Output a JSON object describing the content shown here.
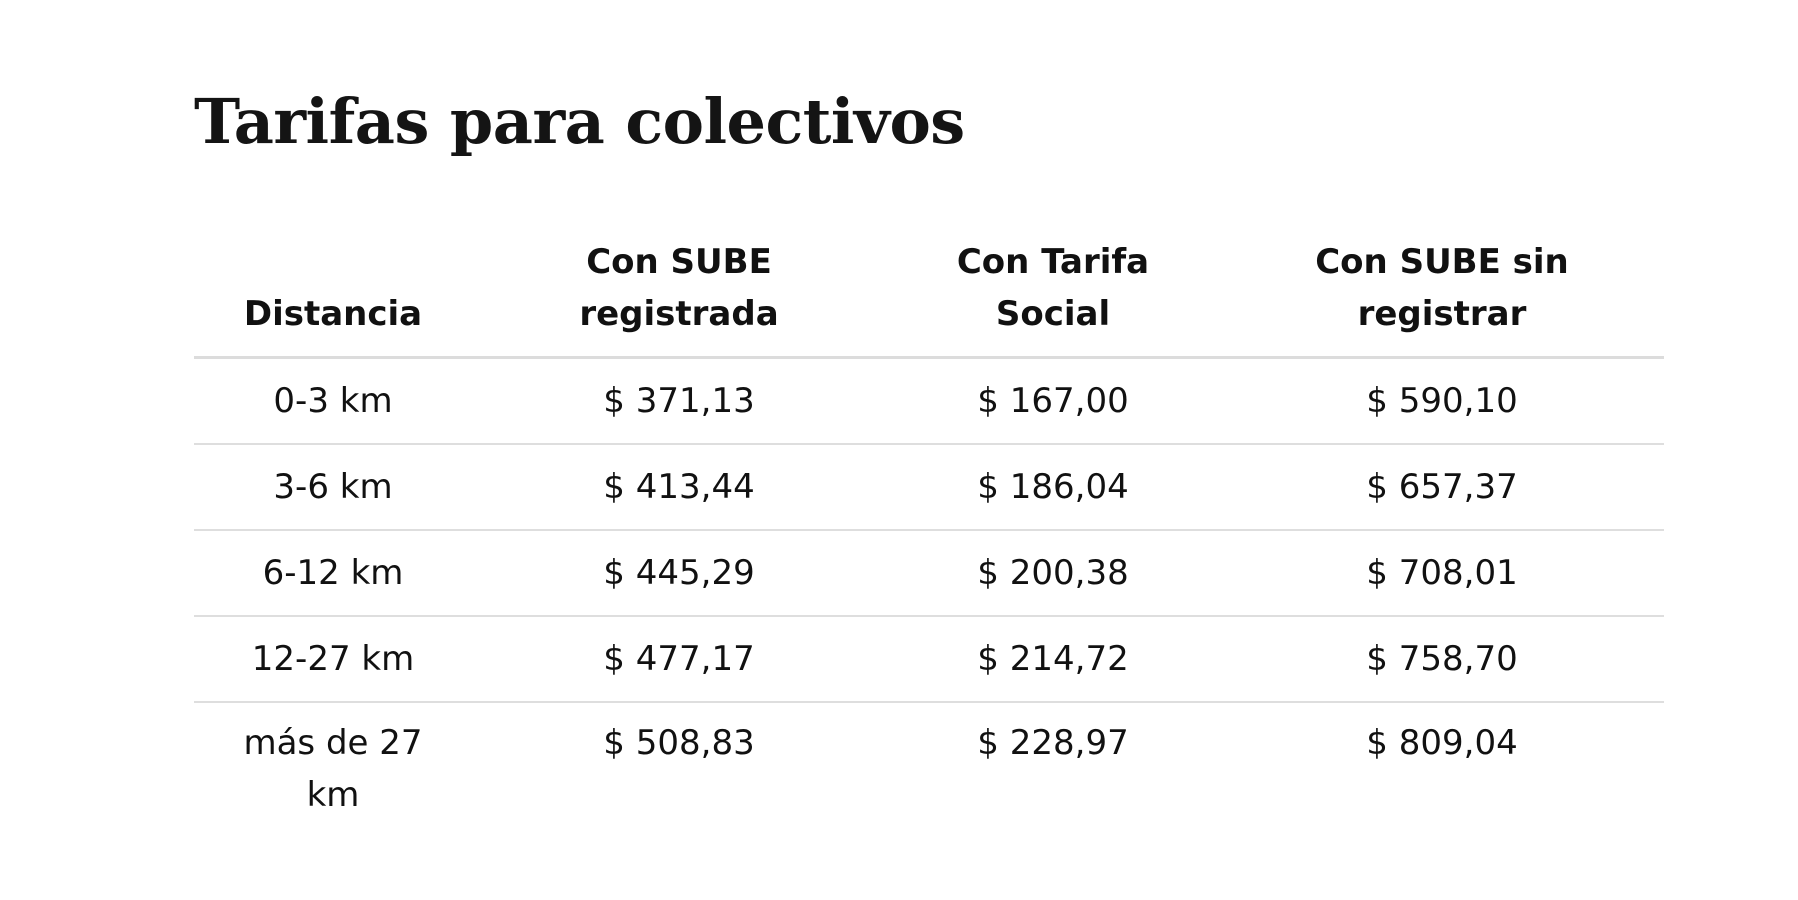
{
  "title": "Tarifas para colectivos",
  "table": {
    "headers": [
      "Distancia",
      "Con SUBE registrada",
      "Con Tarifa Social",
      "Con SUBE sin registrar"
    ],
    "rows": [
      [
        "0-3 km",
        "$ 371,13",
        "$ 167,00",
        "$ 590,10"
      ],
      [
        "3-6 km",
        "$ 413,44",
        "$ 186,04",
        "$ 657,37"
      ],
      [
        "6-12 km",
        "$ 445,29",
        "$ 200,38",
        "$ 708,01"
      ],
      [
        "12-27 km",
        "$ 477,17",
        "$ 214,72",
        "$ 758,70"
      ],
      [
        "más de 27 km",
        "$ 508,83",
        "$ 228,97",
        "$ 809,04"
      ]
    ]
  }
}
